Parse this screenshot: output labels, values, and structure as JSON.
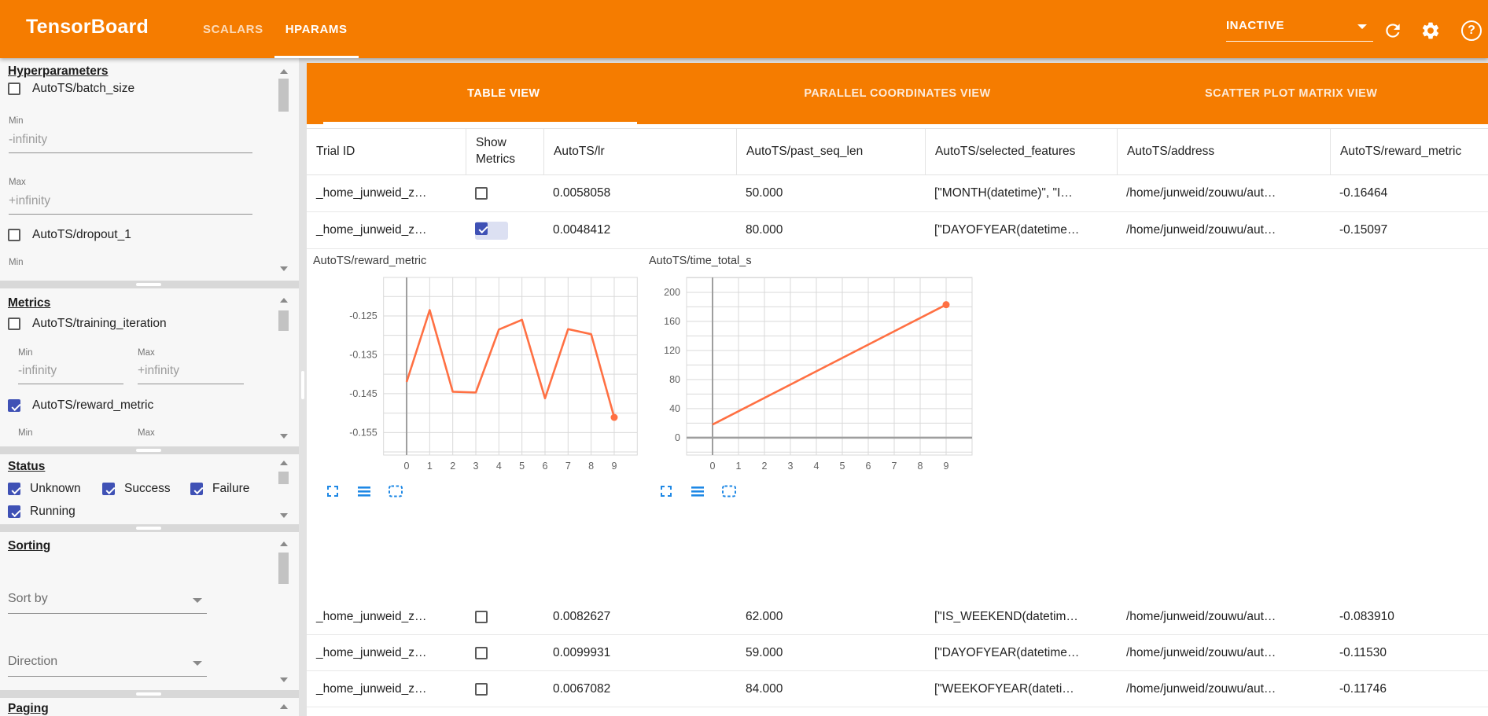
{
  "header": {
    "title": "TensorBoard",
    "nav_tabs": [
      {
        "label": "SCALARS",
        "active": false
      },
      {
        "label": "HPARAMS",
        "active": true
      }
    ],
    "run_status_dropdown": {
      "value": "INACTIVE"
    },
    "icon_names": [
      "dropdown-arrow-icon",
      "refresh-icon",
      "gear-icon",
      "help-icon"
    ]
  },
  "sidebar": {
    "hyperparameters": {
      "title": "Hyperparameters",
      "params": [
        {
          "name": "AutoTS/batch_size",
          "checked": false,
          "min_label": "Min",
          "min_value": "-infinity",
          "max_label": "Max",
          "max_value": "+infinity"
        },
        {
          "name": "AutoTS/dropout_1",
          "checked": false,
          "min_label": "Min"
        }
      ]
    },
    "metrics": {
      "title": "Metrics",
      "items": [
        {
          "name": "AutoTS/training_iteration",
          "checked": false,
          "min_label": "Min",
          "min_value": "-infinity",
          "max_label": "Max",
          "max_value": "+infinity"
        },
        {
          "name": "AutoTS/reward_metric",
          "checked": true,
          "min_label": "Min",
          "max_label": "Max"
        }
      ]
    },
    "status": {
      "title": "Status",
      "options": [
        {
          "label": "Unknown",
          "checked": true
        },
        {
          "label": "Success",
          "checked": true
        },
        {
          "label": "Failure",
          "checked": true
        },
        {
          "label": "Running",
          "checked": true
        }
      ]
    },
    "sorting": {
      "title": "Sorting",
      "sort_by": {
        "label": "Sort by"
      },
      "direction": {
        "label": "Direction"
      }
    },
    "paging": {
      "title": "Paging"
    }
  },
  "main": {
    "view_tabs": [
      {
        "label": "TABLE VIEW",
        "active": true
      },
      {
        "label": "PARALLEL COORDINATES VIEW",
        "active": false
      },
      {
        "label": "SCATTER PLOT MATRIX VIEW",
        "active": false
      }
    ],
    "table": {
      "columns": [
        "Trial ID",
        "Show Metrics",
        "AutoTS/lr",
        "AutoTS/past_seq_len",
        "AutoTS/selected_features",
        "AutoTS/address",
        "AutoTS/reward_metric"
      ],
      "rows": [
        {
          "trial_id": "_home_junweid_z…",
          "show_metrics": false,
          "lr": "0.0058058",
          "past_seq_len": "50.000",
          "selected_features": "[\"MONTH(datetime)\", \"I…",
          "address": "/home/junweid/zouwu/aut…",
          "reward_metric": "-0.16464",
          "group": "top"
        },
        {
          "trial_id": "_home_junweid_z…",
          "show_metrics": true,
          "lr": "0.0048412",
          "past_seq_len": "80.000",
          "selected_features": "[\"DAYOFYEAR(datetime…",
          "address": "/home/junweid/zouwu/aut…",
          "reward_metric": "-0.15097",
          "group": "top"
        },
        {
          "trial_id": "_home_junweid_z…",
          "show_metrics": false,
          "lr": "0.0082627",
          "past_seq_len": "62.000",
          "selected_features": "[\"IS_WEEKEND(datetim…",
          "address": "/home/junweid/zouwu/aut…",
          "reward_metric": "-0.083910",
          "group": "bottom"
        },
        {
          "trial_id": "_home_junweid_z…",
          "show_metrics": false,
          "lr": "0.0099931",
          "past_seq_len": "59.000",
          "selected_features": "[\"DAYOFYEAR(datetime…",
          "address": "/home/junweid/zouwu/aut…",
          "reward_metric": "-0.11530",
          "group": "bottom"
        },
        {
          "trial_id": "_home_junweid_z…",
          "show_metrics": false,
          "lr": "0.0067082",
          "past_seq_len": "84.000",
          "selected_features": "[\"WEEKOFYEAR(dateti…",
          "address": "/home/junweid/zouwu/aut…",
          "reward_metric": "-0.11746",
          "group": "bottom"
        }
      ]
    },
    "chart_icon_names": [
      "fullscreen-icon",
      "lines-icon",
      "dashed-box-icon"
    ]
  },
  "chart_data": [
    {
      "type": "line",
      "title": "AutoTS/reward_metric",
      "x": [
        0,
        1,
        2,
        3,
        4,
        5,
        6,
        7,
        8,
        9
      ],
      "y": [
        -0.142,
        -0.1235,
        -0.1445,
        -0.1447,
        -0.1285,
        -0.126,
        -0.1462,
        -0.1284,
        -0.1297,
        -0.1511
      ],
      "xlim": [
        -1,
        10
      ],
      "ylim": [
        -0.1608,
        -0.1151
      ],
      "xticks": [
        0,
        1,
        2,
        3,
        4,
        5,
        6,
        7,
        8,
        9
      ],
      "grid_y": [
        -0.12,
        -0.125,
        -0.13,
        -0.135,
        -0.14,
        -0.145,
        -0.15,
        -0.155,
        -0.16
      ],
      "yticks": [
        {
          "v": -0.125,
          "label": "-0.125"
        },
        {
          "v": -0.135,
          "label": "-0.135"
        },
        {
          "v": -0.145,
          "label": "-0.145"
        },
        {
          "v": -0.155,
          "label": "-0.155"
        }
      ],
      "end_dot": true,
      "zero_line_y": false
    },
    {
      "type": "line",
      "title": "AutoTS/time_total_s",
      "x": [
        0,
        9
      ],
      "y": [
        18,
        183
      ],
      "xlim": [
        -1,
        10
      ],
      "ylim": [
        -24,
        220.5
      ],
      "xticks": [
        0,
        1,
        2,
        3,
        4,
        5,
        6,
        7,
        8,
        9
      ],
      "grid_y": [
        -20,
        0,
        20,
        40,
        60,
        80,
        100,
        120,
        140,
        160,
        180,
        200,
        220
      ],
      "yticks": [
        {
          "v": 0,
          "label": "0"
        },
        {
          "v": 40,
          "label": "40"
        },
        {
          "v": 80,
          "label": "80"
        },
        {
          "v": 120,
          "label": "120"
        },
        {
          "v": 160,
          "label": "160"
        },
        {
          "v": 200,
          "label": "200"
        }
      ],
      "end_dot": true,
      "zero_line_y": true
    }
  ],
  "colors": {
    "accent_orange": "#f57c00",
    "checkbox_indigo": "#3f51b5",
    "chart_line": "#ff7043",
    "chart_icon_blue": "#1e88e5",
    "grid": "#d9d9d9",
    "dark_axis": "#9e9e9e"
  }
}
